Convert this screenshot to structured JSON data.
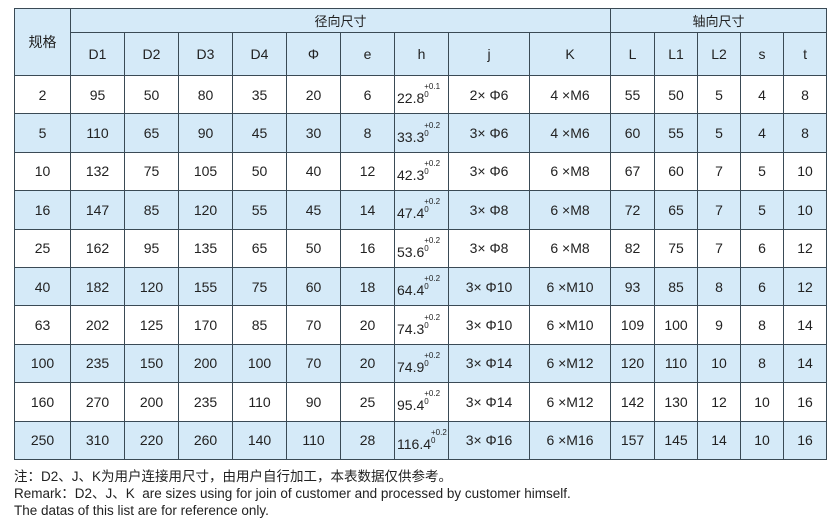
{
  "table": {
    "spec_header": "规格",
    "group_radial": "径向尺寸",
    "group_axial": "轴向尺寸",
    "columns": [
      "D1",
      "D2",
      "D3",
      "D4",
      "Φ",
      "e",
      "h",
      "j",
      "K",
      "L",
      "L1",
      "L2",
      "s",
      "t"
    ],
    "rows": [
      {
        "spec": "2",
        "D1": "95",
        "D2": "50",
        "D3": "80",
        "D4": "35",
        "phi": "20",
        "e": "6",
        "h": "22.8",
        "h_tol_upper": "+0.1",
        "h_tol_lower": "0",
        "j": "2× Φ6",
        "K": "4 ×M6",
        "L": "55",
        "L1": "50",
        "L2": "5",
        "s": "4",
        "t": "8"
      },
      {
        "spec": "5",
        "D1": "110",
        "D2": "65",
        "D3": "90",
        "D4": "45",
        "phi": "30",
        "e": "8",
        "h": "33.3",
        "h_tol_upper": "+0.2",
        "h_tol_lower": "0",
        "j": "3× Φ6",
        "K": "4 ×M6",
        "L": "60",
        "L1": "55",
        "L2": "5",
        "s": "4",
        "t": "8"
      },
      {
        "spec": "10",
        "D1": "132",
        "D2": "75",
        "D3": "105",
        "D4": "50",
        "phi": "40",
        "e": "12",
        "h": "42.3",
        "h_tol_upper": "+0.2",
        "h_tol_lower": "0",
        "j": "3× Φ6",
        "K": "6 ×M8",
        "L": "67",
        "L1": "60",
        "L2": "7",
        "s": "5",
        "t": "10"
      },
      {
        "spec": "16",
        "D1": "147",
        "D2": "85",
        "D3": "120",
        "D4": "55",
        "phi": "45",
        "e": "14",
        "h": "47.4",
        "h_tol_upper": "+0.2",
        "h_tol_lower": "0",
        "j": "3× Φ8",
        "K": "6 ×M8",
        "L": "72",
        "L1": "65",
        "L2": "7",
        "s": "5",
        "t": "10"
      },
      {
        "spec": "25",
        "D1": "162",
        "D2": "95",
        "D3": "135",
        "D4": "65",
        "phi": "50",
        "e": "16",
        "h": "53.6",
        "h_tol_upper": "+0.2",
        "h_tol_lower": "0",
        "j": "3× Φ8",
        "K": "6 ×M8",
        "L": "82",
        "L1": "75",
        "L2": "7",
        "s": "6",
        "t": "12"
      },
      {
        "spec": "40",
        "D1": "182",
        "D2": "120",
        "D3": "155",
        "D4": "75",
        "phi": "60",
        "e": "18",
        "h": "64.4",
        "h_tol_upper": "+0.2",
        "h_tol_lower": "0",
        "j": "3× Φ10",
        "K": "6 ×M10",
        "L": "93",
        "L1": "85",
        "L2": "8",
        "s": "6",
        "t": "12"
      },
      {
        "spec": "63",
        "D1": "202",
        "D2": "125",
        "D3": "170",
        "D4": "85",
        "phi": "70",
        "e": "20",
        "h": "74.3",
        "h_tol_upper": "+0.2",
        "h_tol_lower": "0",
        "j": "3× Φ10",
        "K": "6 ×M10",
        "L": "109",
        "L1": "100",
        "L2": "9",
        "s": "8",
        "t": "14"
      },
      {
        "spec": "100",
        "D1": "235",
        "D2": "150",
        "D3": "200",
        "D4": "100",
        "phi": "70",
        "e": "20",
        "h": "74.9",
        "h_tol_upper": "+0.2",
        "h_tol_lower": "0",
        "j": "3× Φ14",
        "K": "6 ×M12",
        "L": "120",
        "L1": "110",
        "L2": "10",
        "s": "8",
        "t": "14"
      },
      {
        "spec": "160",
        "D1": "270",
        "D2": "200",
        "D3": "235",
        "D4": "110",
        "phi": "90",
        "e": "25",
        "h": "95.4",
        "h_tol_upper": "+0.2",
        "h_tol_lower": "0",
        "j": "3× Φ14",
        "K": "6 ×M12",
        "L": "142",
        "L1": "130",
        "L2": "12",
        "s": "10",
        "t": "16"
      },
      {
        "spec": "250",
        "D1": "310",
        "D2": "220",
        "D3": "260",
        "D4": "140",
        "phi": "110",
        "e": "28",
        "h": "116.4",
        "h_tol_upper": "+0.2",
        "h_tol_lower": "0",
        "j": "3× Φ16",
        "K": "6 ×M16",
        "L": "157",
        "L1": "145",
        "L2": "14",
        "s": "10",
        "t": "16"
      }
    ]
  },
  "notes": [
    "注：D2、J、K为用户连接用尺寸，由用户自行加工，本表数据仅供参考。",
    "Remark：D2、J、K  are sizes using for join of customer and processed by customer himself.",
    "The datas of this list are for reference only."
  ],
  "colors": {
    "header_bg": "#d5eaf8",
    "border": "#3a4a55"
  }
}
